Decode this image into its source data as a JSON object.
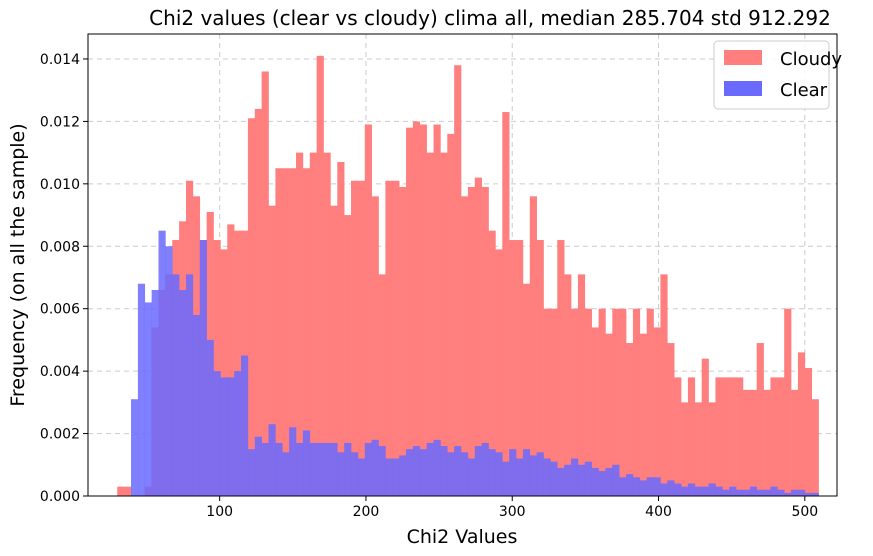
{
  "chart_data": {
    "type": "bar",
    "title": "Chi2 values (clear vs cloudy) clima all, median 285.704 std 912.292",
    "xlabel": "Chi2 Values",
    "ylabel": "Frequency (on all the sample)",
    "xlim": [
      10,
      522
    ],
    "ylim": [
      0,
      0.0148
    ],
    "x_ticks": [
      100,
      200,
      300,
      400,
      500
    ],
    "y_ticks": [
      0.0,
      0.002,
      0.004,
      0.006,
      0.008,
      0.01,
      0.012,
      0.014
    ],
    "y_tick_labels": [
      "0.000",
      "0.002",
      "0.004",
      "0.006",
      "0.008",
      "0.010",
      "0.012",
      "0.014"
    ],
    "grid": true,
    "legend_position": "top-right",
    "bin_start": 30,
    "bin_width": 4.7,
    "series": [
      {
        "name": "Cloudy",
        "color": "#ff7f7f",
        "values": [
          0.0003,
          0.0003,
          0,
          0,
          0.0003,
          0.0054,
          0.0066,
          0.0071,
          0.0082,
          0.0088,
          0.0101,
          0.0096,
          0.0082,
          0.0091,
          0.0082,
          0.0079,
          0.0087,
          0.0085,
          0.0085,
          0.0121,
          0.0124,
          0.0136,
          0.0093,
          0.0105,
          0.0105,
          0.0105,
          0.011,
          0.0105,
          0.011,
          0.0141,
          0.011,
          0.0093,
          0.0107,
          0.009,
          0.0101,
          0.0101,
          0.0119,
          0.0096,
          0.0071,
          0.0101,
          0.0101,
          0.0099,
          0.0118,
          0.012,
          0.0119,
          0.011,
          0.0119,
          0.011,
          0.0116,
          0.0138,
          0.0096,
          0.0099,
          0.0102,
          0.0099,
          0.0085,
          0.0079,
          0.0123,
          0.0082,
          0.0082,
          0.0068,
          0.0096,
          0.0082,
          0.006,
          0.006,
          0.0082,
          0.0071,
          0.006,
          0.0071,
          0.006,
          0.0054,
          0.006,
          0.0052,
          0.006,
          0.006,
          0.0049,
          0.006,
          0.0052,
          0.006,
          0.0054,
          0.0071,
          0.0049,
          0.0038,
          0.003,
          0.0038,
          0.003,
          0.0044,
          0.003,
          0.0038,
          0.0038,
          0.0038,
          0.0038,
          0.0034,
          0.0034,
          0.0049,
          0.0034,
          0.0038,
          0.0038,
          0.006,
          0.0034,
          0.0046,
          0.0041,
          0.0031
        ]
      },
      {
        "name": "Clear",
        "color": "#6a6aff",
        "values": [
          0,
          0,
          0.0031,
          0.0068,
          0.0062,
          0.0066,
          0.0085,
          0.008,
          0.0071,
          0.0066,
          0.0071,
          0.0058,
          0.0082,
          0.005,
          0.004,
          0.0038,
          0.0038,
          0.004,
          0.0045,
          0.0015,
          0.0019,
          0.0017,
          0.0023,
          0.0017,
          0.0014,
          0.0022,
          0.0017,
          0.0021,
          0.0017,
          0.0017,
          0.0017,
          0.0017,
          0.0014,
          0.0017,
          0.0014,
          0.0012,
          0.0017,
          0.0018,
          0.0016,
          0.0012,
          0.0012,
          0.0013,
          0.0015,
          0.0016,
          0.0015,
          0.0017,
          0.0018,
          0.0016,
          0.0014,
          0.0016,
          0.0014,
          0.0012,
          0.0016,
          0.0017,
          0.0015,
          0.0014,
          0.0011,
          0.0015,
          0.0012,
          0.0015,
          0.0013,
          0.0014,
          0.0012,
          0.0011,
          0.0009,
          0.001,
          0.0012,
          0.001,
          0.0011,
          0.0009,
          0.0008,
          0.0009,
          0.001,
          0.0006,
          0.0007,
          0.0006,
          0.0005,
          0.0006,
          0.0006,
          0.0004,
          0.0005,
          0.0004,
          0.0003,
          0.0004,
          0.0003,
          0.0003,
          0.0004,
          0.0003,
          0.0002,
          0.0003,
          0.0002,
          0.0002,
          0.0003,
          0.0002,
          0.0002,
          0.0003,
          0.0002,
          0.0001,
          0.0002,
          0.0002,
          0.0001,
          0.0001
        ]
      }
    ]
  }
}
